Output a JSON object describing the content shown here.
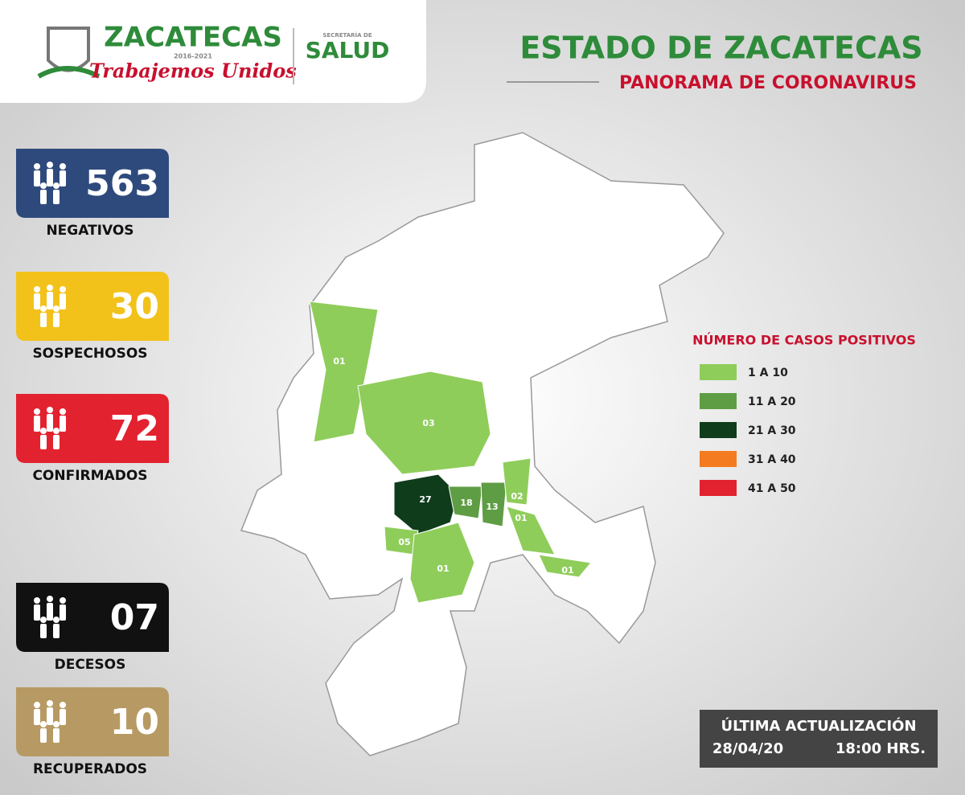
{
  "header": {
    "brand": "ZACATECAS",
    "years": "2016-2021",
    "slogan": "Trabajemos Unidos",
    "secretaria": "SECRETARÍA DE",
    "salud": "SALUD"
  },
  "title": "ESTADO DE ZACATECAS",
  "subtitle": "PANORAMA DE CORONAVIRUS",
  "stats": [
    {
      "value": "563",
      "label": "NEGATIVOS",
      "color": "#2e4a7d"
    },
    {
      "value": "30",
      "label": "SOSPECHOSOS",
      "color": "#f2c21b"
    },
    {
      "value": "72",
      "label": "CONFIRMADOS",
      "color": "#e3222f"
    },
    {
      "value": "07",
      "label": "DECESOS",
      "color": "#111111"
    },
    {
      "value": "10",
      "label": "RECUPERADOS",
      "color": "#b79a63"
    }
  ],
  "legend": {
    "title": "NÚMERO DE CASOS POSITIVOS",
    "items": [
      {
        "label": "1 A 10",
        "color": "#8fcd5b"
      },
      {
        "label": "11 A 20",
        "color": "#5f9d45"
      },
      {
        "label": "21 A 30",
        "color": "#0f3d1c"
      },
      {
        "label": "31 A 40",
        "color": "#f47b20"
      },
      {
        "label": "41 A 50",
        "color": "#e3222f"
      }
    ]
  },
  "map": {
    "regions": [
      {
        "label": "01",
        "color": "#8fcd5b"
      },
      {
        "label": "03",
        "color": "#8fcd5b"
      },
      {
        "label": "27",
        "color": "#0f3d1c"
      },
      {
        "label": "18",
        "color": "#5f9d45"
      },
      {
        "label": "13",
        "color": "#5f9d45"
      },
      {
        "label": "02",
        "color": "#8fcd5b"
      },
      {
        "label": "01",
        "color": "#8fcd5b"
      },
      {
        "label": "05",
        "color": "#8fcd5b"
      },
      {
        "label": "01",
        "color": "#8fcd5b"
      },
      {
        "label": "01",
        "color": "#8fcd5b"
      }
    ]
  },
  "footer": {
    "title": "ÚLTIMA ACTUALIZACIÓN",
    "date": "28/04/20",
    "time": "18:00 HRS."
  }
}
